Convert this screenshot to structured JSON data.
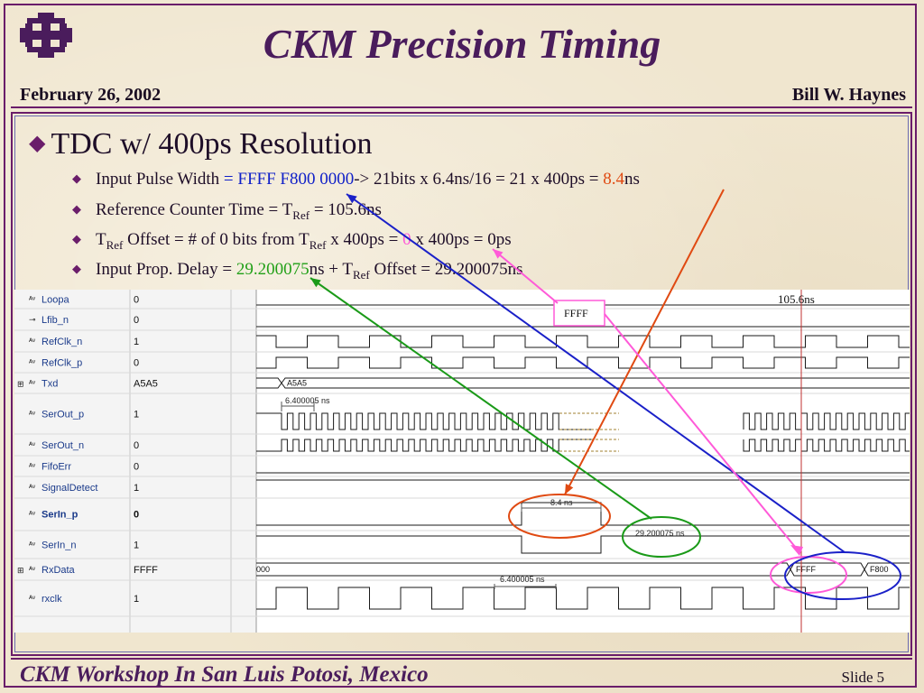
{
  "header": {
    "title": "CKM Precision Timing",
    "date": "February 26, 2002",
    "author": "Bill W. Haynes"
  },
  "main_bullet": "TDC w/ 400ps Resolution",
  "bullets": {
    "b1": {
      "pre": "Input Pulse Width ",
      "eq": "= ",
      "hex": "FFFF F800 0000",
      "mid": "-> 21bits x 6.4ns/16 = 21 x 400ps = ",
      "val": "8.4",
      "unit": "ns"
    },
    "b2": {
      "pre": "Reference Counter Time = T",
      "sub": "Ref",
      "post": "  = 105.6ns"
    },
    "b3": {
      "t1": "T",
      "sub1": "Ref",
      "mid": " Offset  = # of 0 bits from T",
      "sub2": "Ref",
      "mid2": "  x 400ps = ",
      "zero": "0",
      "post": " x 400ps = 0ps"
    },
    "b4": {
      "pre": "Input Prop. Delay = ",
      "val": "29.200075",
      "mid": "ns + T",
      "sub": "Ref",
      "post": " Offset = 29.200075ns"
    }
  },
  "waveform": {
    "signals": [
      {
        "name": "Loopa",
        "value": "0",
        "bold": false,
        "expand": false
      },
      {
        "name": "Lfib_n",
        "value": "0",
        "bold": false,
        "expand": false
      },
      {
        "name": "RefClk_n",
        "value": "1",
        "bold": false,
        "expand": false
      },
      {
        "name": "RefClk_p",
        "value": "0",
        "bold": false,
        "expand": false
      },
      {
        "name": "Txd",
        "value": "A5A5",
        "bold": false,
        "expand": true
      },
      {
        "name": "SerOut_p",
        "value": "1",
        "bold": false,
        "expand": false
      },
      {
        "name": "SerOut_n",
        "value": "0",
        "bold": false,
        "expand": false
      },
      {
        "name": "FifoErr",
        "value": "0",
        "bold": false,
        "expand": false
      },
      {
        "name": "SignalDetect",
        "value": "1",
        "bold": false,
        "expand": false
      },
      {
        "name": "SerIn_p",
        "value": "0",
        "bold": true,
        "expand": false
      },
      {
        "name": "SerIn_n",
        "value": "1",
        "bold": false,
        "expand": false
      },
      {
        "name": "RxData",
        "value": "FFFF",
        "bold": false,
        "expand": true
      },
      {
        "name": "rxclk",
        "value": "1",
        "bold": false,
        "expand": false
      }
    ],
    "txd_bus_label": "A5A5",
    "rxdata_bus_labels": [
      "000",
      "FFFF",
      "F800"
    ],
    "meas_serout": "6.400005 ns",
    "meas_serin": "8.4 ns",
    "meas_delay": "29.200075 ns",
    "meas_rxclk": "6.400005 ns",
    "cursor_label": "105.6ns",
    "ffff_callout": "FFFF"
  },
  "footer": {
    "event": "CKM Workshop In San Luis Potosi, Mexico",
    "slide_label": "Slide",
    "slide_number": "5"
  },
  "colors": {
    "frame": "#6a1d6a",
    "title": "#4a1c5c",
    "arrow_blue": "#1a20c8",
    "arrow_red": "#e04a12",
    "arrow_pink": "#ff5ad8",
    "arrow_green": "#1a9a18"
  }
}
